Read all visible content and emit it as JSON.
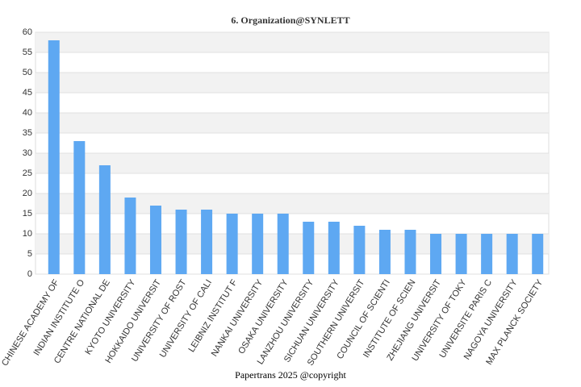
{
  "chart_data": {
    "type": "bar",
    "title": "6. Organization@SYNLETT",
    "categories": [
      "CHINESE ACADEMY OF",
      "INDIAN INSTITUTE O",
      "CENTRE NATIONAL DE",
      "KYOTO UNIVERSITY",
      "HOKKAIDO UNIVERSIT",
      "UNIVERSITY OF ROST",
      "UNIVERSITY OF CALI",
      "LEIBNIZ INSTITUT F",
      "NANKAI UNIVERSITY",
      "OSAKA UNIVERSITY",
      "LANZHOU UNIVERSITY",
      "SICHUAN UNIVERSITY",
      "SOUTHERN UNIVERSIT",
      "COUNCIL OF SCIENTI",
      "INSTITUTE OF SCIEN",
      "ZHEJIANG UNIVERSIT",
      "UNIVERSITY OF TOKY",
      "UNIVERSITE PARIS C",
      "NAGOYA UNIVERSITY",
      "MAX PLANCK SOCIETY"
    ],
    "values": [
      58,
      33,
      27,
      19,
      17,
      16,
      16,
      15,
      15,
      15,
      13,
      13,
      12,
      11,
      11,
      10,
      10,
      10,
      10,
      10
    ],
    "color": "#5ea8f2",
    "ylim": [
      0,
      60
    ],
    "yticks": [
      0,
      5,
      10,
      15,
      20,
      25,
      30,
      35,
      40,
      45,
      50,
      55,
      60
    ],
    "grid": true,
    "footer": "Papertrans 2025 @copyright"
  }
}
